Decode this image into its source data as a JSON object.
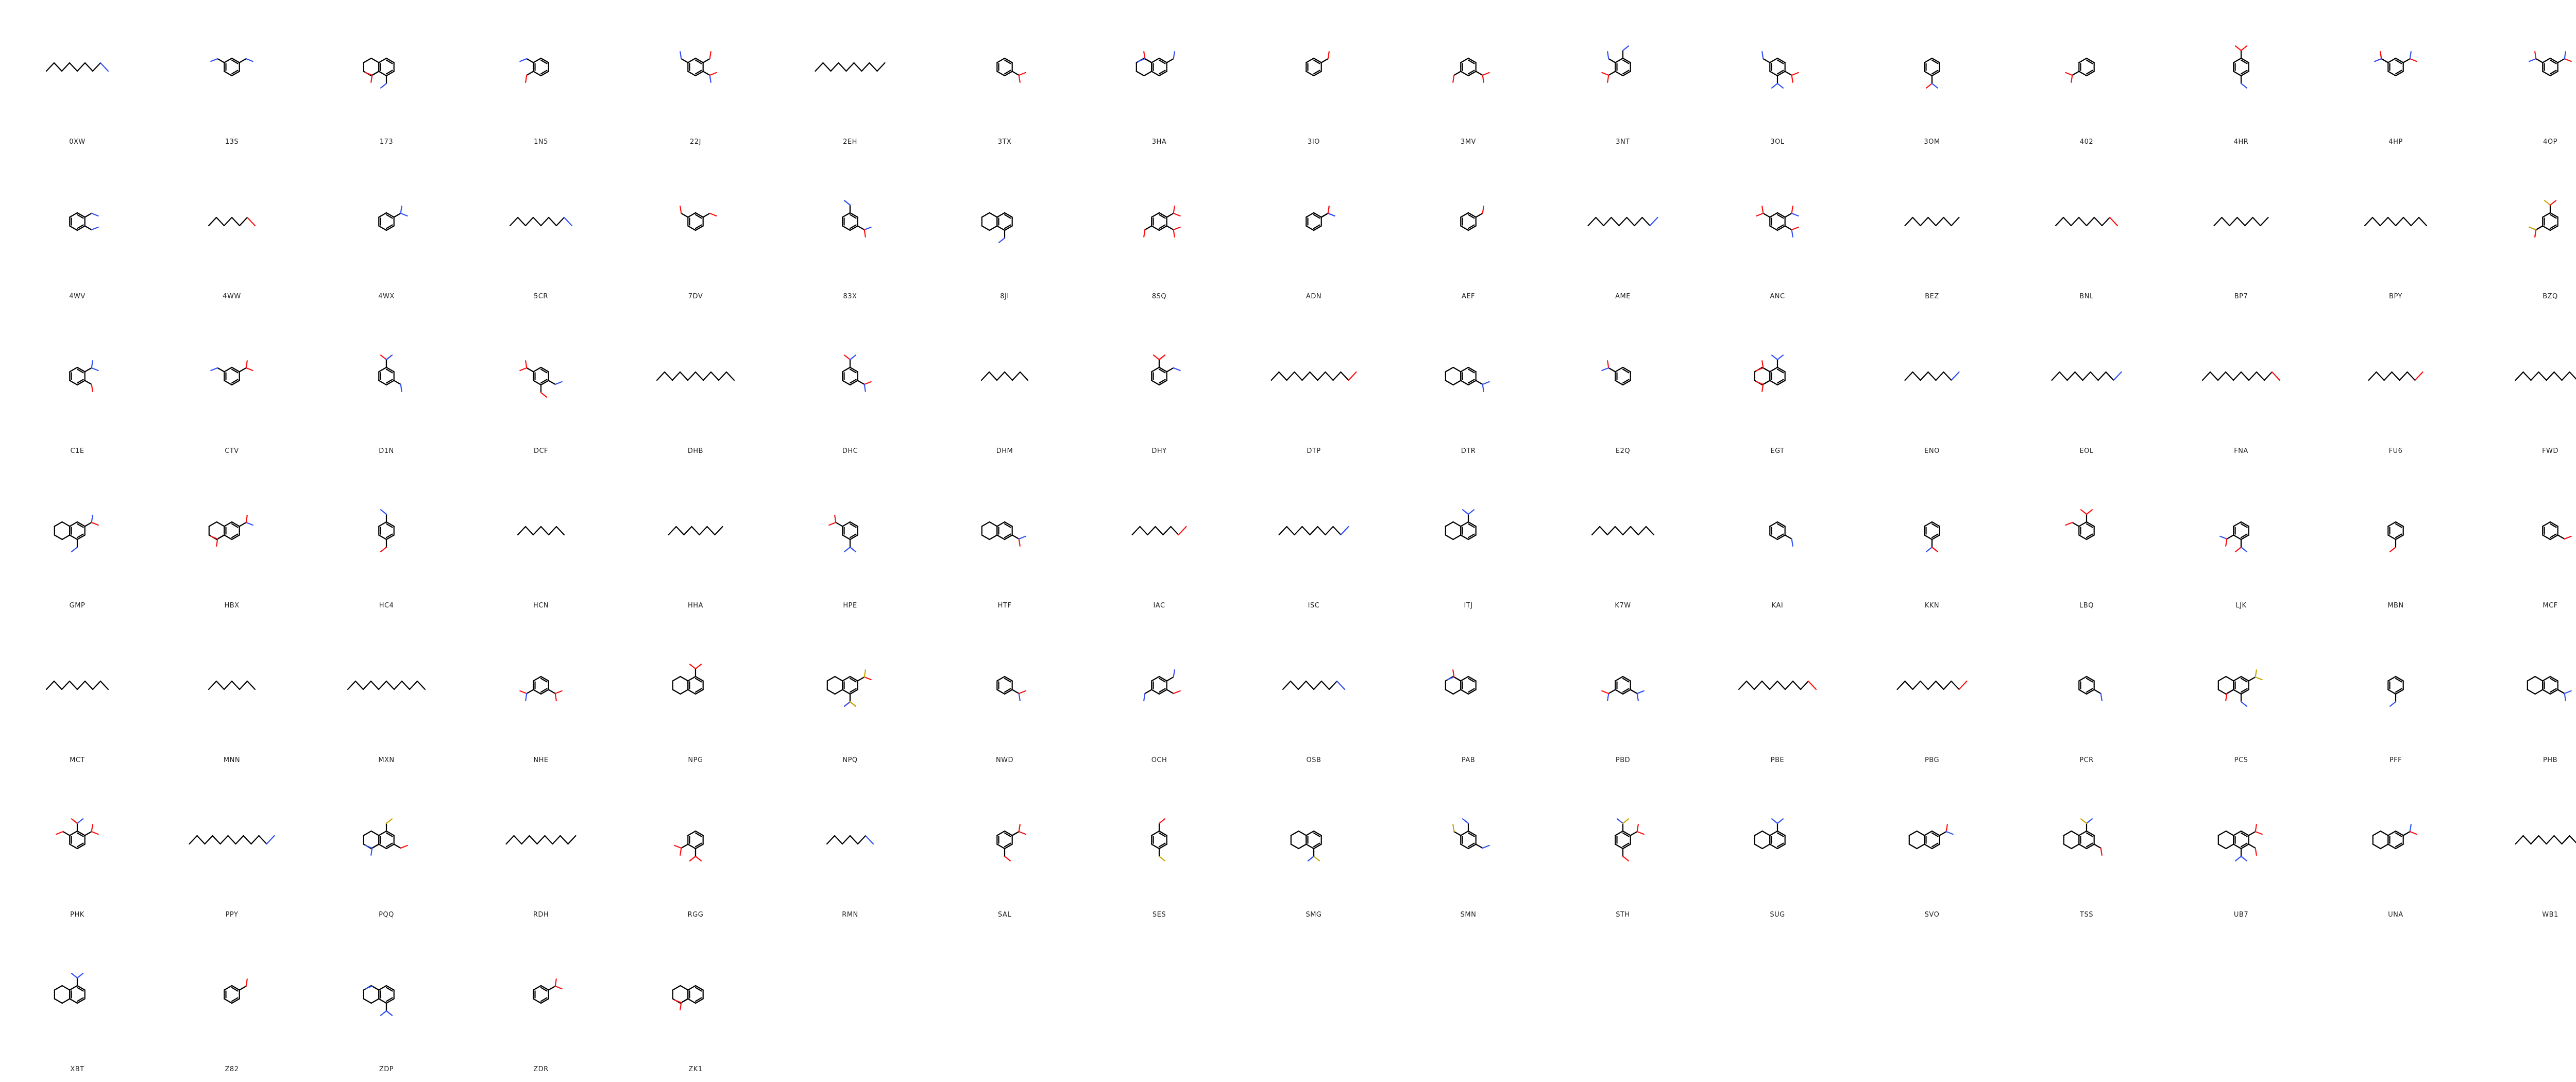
{
  "grid": {
    "columns": 17,
    "colors": {
      "bond": "#000000",
      "oxygen": "#ff0d0d",
      "nitrogen": "#3050f8",
      "sulfur": "#c8a800",
      "phosphorus": "#ff8000",
      "fluorine": "#33cc33",
      "iodine": "#940094",
      "label": "#222222"
    },
    "ligands": [
      "0XW",
      "13S",
      "173",
      "1N5",
      "22J",
      "2EH",
      "3TX",
      "3HA",
      "3IO",
      "3MV",
      "3NT",
      "3OL",
      "3OM",
      "402",
      "4HR",
      "4HP",
      "4OP",
      "4WV",
      "4WW",
      "4WX",
      "5CR",
      "7DV",
      "83X",
      "8JI",
      "8SQ",
      "ADN",
      "AEF",
      "AME",
      "ANC",
      "BEZ",
      "BNL",
      "BP7",
      "BPY",
      "BZQ",
      "C1E",
      "CTV",
      "D1N",
      "DCF",
      "DHB",
      "DHC",
      "DHM",
      "DHY",
      "DTP",
      "DTR",
      "E2Q",
      "EGT",
      "ENO",
      "EOL",
      "FNA",
      "FU6",
      "FWD",
      "GMP",
      "HBX",
      "HC4",
      "HCN",
      "HHA",
      "HPE",
      "HTF",
      "IAC",
      "ISC",
      "ITJ",
      "K7W",
      "KAI",
      "KKN",
      "LBQ",
      "LJK",
      "MBN",
      "MCF",
      "MCT",
      "MNN",
      "MXN",
      "NHE",
      "NPG",
      "NPQ",
      "NWD",
      "OCH",
      "OSB",
      "PAB",
      "PBD",
      "PBE",
      "PBG",
      "PCR",
      "PCS",
      "PFF",
      "PHB",
      "PHK",
      "PPY",
      "PQQ",
      "RDH",
      "RGG",
      "RMN",
      "SAL",
      "SES",
      "SMG",
      "SMN",
      "STH",
      "SUG",
      "SVO",
      "TSS",
      "UB7",
      "UNA",
      "WB1",
      "XBT",
      "Z82",
      "ZDP",
      "ZDR",
      "ZK1"
    ]
  }
}
